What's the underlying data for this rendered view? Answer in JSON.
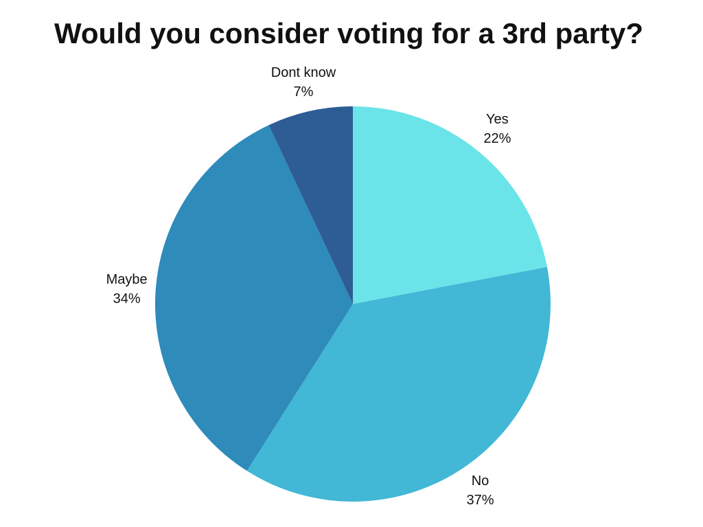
{
  "chart_data": {
    "type": "pie",
    "title": "Would you consider voting for a 3rd party?",
    "categories": [
      "Yes",
      "No",
      "Maybe",
      "Dont know"
    ],
    "values": [
      22,
      37,
      34,
      7
    ],
    "value_labels": [
      "22%",
      "37%",
      "34%",
      "7%"
    ],
    "colors": [
      "#6ae4e8",
      "#42b7d6",
      "#2e8bba",
      "#2e5d96"
    ]
  }
}
